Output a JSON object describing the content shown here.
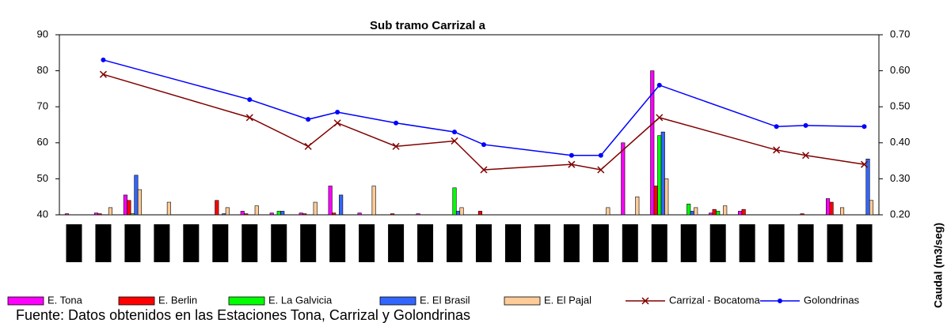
{
  "chart_data": {
    "type": "bar_line",
    "title": "Sub tramo Carrizal a",
    "y2_label": "Caudal (m3/seg)",
    "source": "Fuente: Datos obtenidos en las Estaciones Tona, Carrizal y Golondrinas",
    "categories": [
      null,
      null,
      null,
      null,
      null,
      null,
      null,
      null,
      null,
      null,
      null,
      null,
      null,
      null,
      null,
      null,
      null,
      null,
      null,
      null,
      null,
      null,
      null,
      null,
      null,
      null,
      null,
      null
    ],
    "ylim": [
      40,
      90
    ],
    "yticks": [
      40,
      50,
      60,
      70,
      80,
      90
    ],
    "y2lim": [
      0.2,
      0.7
    ],
    "y2ticks": [
      {
        "value": 0.2,
        "label": "0.20"
      },
      {
        "value": 0.3,
        "label": "0.30"
      },
      {
        "value": 0.4,
        "label": "0.40"
      },
      {
        "value": 0.5,
        "label": "0.50"
      },
      {
        "value": 0.6,
        "label": "0.60"
      },
      {
        "value": 0.7,
        "label": "0.70"
      }
    ],
    "connect_gaps": true,
    "series": [
      {
        "name": "E. Tona",
        "type": "bar",
        "color": "#ff00ff",
        "values": [
          40.3,
          40.5,
          45.5,
          null,
          null,
          null,
          41,
          40.5,
          40.5,
          48,
          40.5,
          null,
          40.3,
          null,
          null,
          null,
          null,
          null,
          null,
          60,
          80,
          null,
          40.5,
          41,
          null,
          null,
          44.5,
          null
        ]
      },
      {
        "name": "E. Berlin",
        "type": "bar",
        "color": "#ff0000",
        "values": [
          null,
          40.3,
          44,
          null,
          null,
          44,
          40.3,
          null,
          40.3,
          40.5,
          null,
          40.3,
          null,
          null,
          41,
          null,
          null,
          null,
          null,
          null,
          48,
          null,
          41.5,
          41.5,
          null,
          40.3,
          43.5,
          null
        ]
      },
      {
        "name": "E. La Galvicia",
        "type": "bar",
        "color": "#00ff00",
        "values": [
          null,
          null,
          40.3,
          null,
          null,
          null,
          null,
          41,
          null,
          null,
          null,
          null,
          null,
          47.5,
          null,
          null,
          null,
          null,
          null,
          null,
          62,
          43,
          41,
          null,
          null,
          null,
          null,
          null
        ]
      },
      {
        "name": "E. El Brasil",
        "type": "bar",
        "color": "#3366ff",
        "values": [
          null,
          null,
          51,
          null,
          null,
          40.3,
          null,
          41,
          null,
          45.5,
          null,
          null,
          null,
          41,
          null,
          null,
          null,
          null,
          null,
          null,
          63,
          41,
          null,
          null,
          null,
          null,
          null,
          55.5
        ]
      },
      {
        "name": "E. El Pajal",
        "type": "bar",
        "color": "#ffcc99",
        "values": [
          null,
          42,
          47,
          43.5,
          null,
          42,
          42.5,
          null,
          43.5,
          null,
          48,
          null,
          null,
          42,
          null,
          null,
          null,
          null,
          42,
          45,
          50,
          42,
          42.5,
          null,
          null,
          null,
          42,
          44
        ]
      },
      {
        "name": "Carrizal - Bocatoma",
        "type": "line",
        "axis": "y2",
        "marker": "x",
        "color": "#800000",
        "values": [
          null,
          0.59,
          null,
          null,
          null,
          null,
          0.47,
          null,
          0.39,
          0.455,
          null,
          0.39,
          null,
          0.405,
          0.325,
          null,
          null,
          0.34,
          0.325,
          null,
          0.47,
          null,
          null,
          null,
          0.38,
          0.365,
          null,
          0.34
        ]
      },
      {
        "name": "Golondrinas",
        "type": "line",
        "axis": "y2",
        "marker": "dot",
        "color": "#0000ff",
        "values": [
          null,
          0.63,
          null,
          null,
          null,
          null,
          0.52,
          null,
          0.465,
          0.485,
          null,
          0.455,
          null,
          0.43,
          0.395,
          null,
          null,
          0.365,
          0.365,
          null,
          0.56,
          null,
          null,
          null,
          0.445,
          0.448,
          null,
          0.445
        ]
      }
    ]
  }
}
